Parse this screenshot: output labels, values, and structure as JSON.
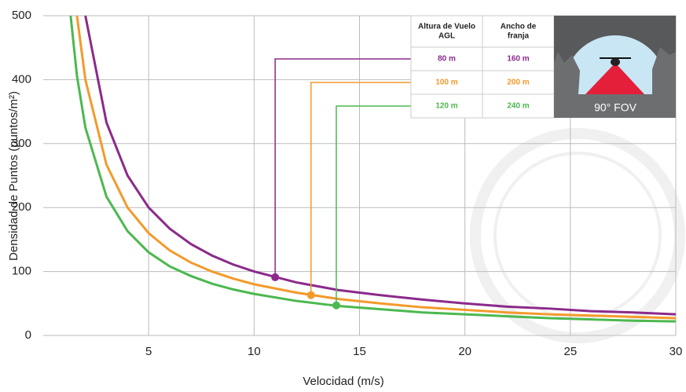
{
  "chart_data": {
    "type": "line",
    "xlabel": "Velocidad (m/s)",
    "ylabel": "Densidad de Puntos (puntos/m²)",
    "x": [
      1.3,
      1.6,
      2,
      3,
      4,
      5,
      6,
      7,
      8,
      9,
      10,
      12,
      14,
      16,
      18,
      20,
      22,
      24,
      26,
      28,
      30
    ],
    "series": [
      {
        "name": "80 m",
        "color": "#8b2a8b",
        "values": [
          null,
          null,
          500,
          333,
          250,
          200,
          167,
          143,
          125,
          111,
          100,
          83,
          71,
          63,
          56,
          50,
          45,
          42,
          38,
          36,
          33
        ]
      },
      {
        "name": "100 m",
        "color": "#f39a2b",
        "values": [
          null,
          500,
          400,
          267,
          200,
          160,
          133,
          114,
          100,
          89,
          80,
          67,
          57,
          50,
          44,
          40,
          36,
          33,
          31,
          29,
          27
        ]
      },
      {
        "name": "120 m",
        "color": "#4cb84f",
        "values": [
          500,
          406,
          325,
          217,
          163,
          130,
          108,
          93,
          81,
          72,
          65,
          54,
          46,
          41,
          36,
          33,
          30,
          27,
          25,
          23,
          22
        ]
      }
    ],
    "highlights": [
      {
        "x": 11,
        "y": 91
      },
      {
        "x": 12.7,
        "y": 63
      },
      {
        "x": 13.9,
        "y": 47
      }
    ],
    "xlim": [
      0,
      30
    ],
    "ylim": [
      0,
      500
    ],
    "xticks": [
      5,
      10,
      15,
      20,
      25,
      30
    ],
    "yticks": [
      0,
      100,
      200,
      300,
      400,
      500
    ],
    "grid": true,
    "table": {
      "header": [
        [
          "Altura de Vuelo",
          "AGL"
        ],
        [
          "Ancho de",
          "franja"
        ]
      ],
      "rows": [
        [
          "80 m",
          "160 m"
        ],
        [
          "100 m",
          "200 m"
        ],
        [
          "120 m",
          "240 m"
        ]
      ]
    },
    "image_label": "90° FOV"
  }
}
